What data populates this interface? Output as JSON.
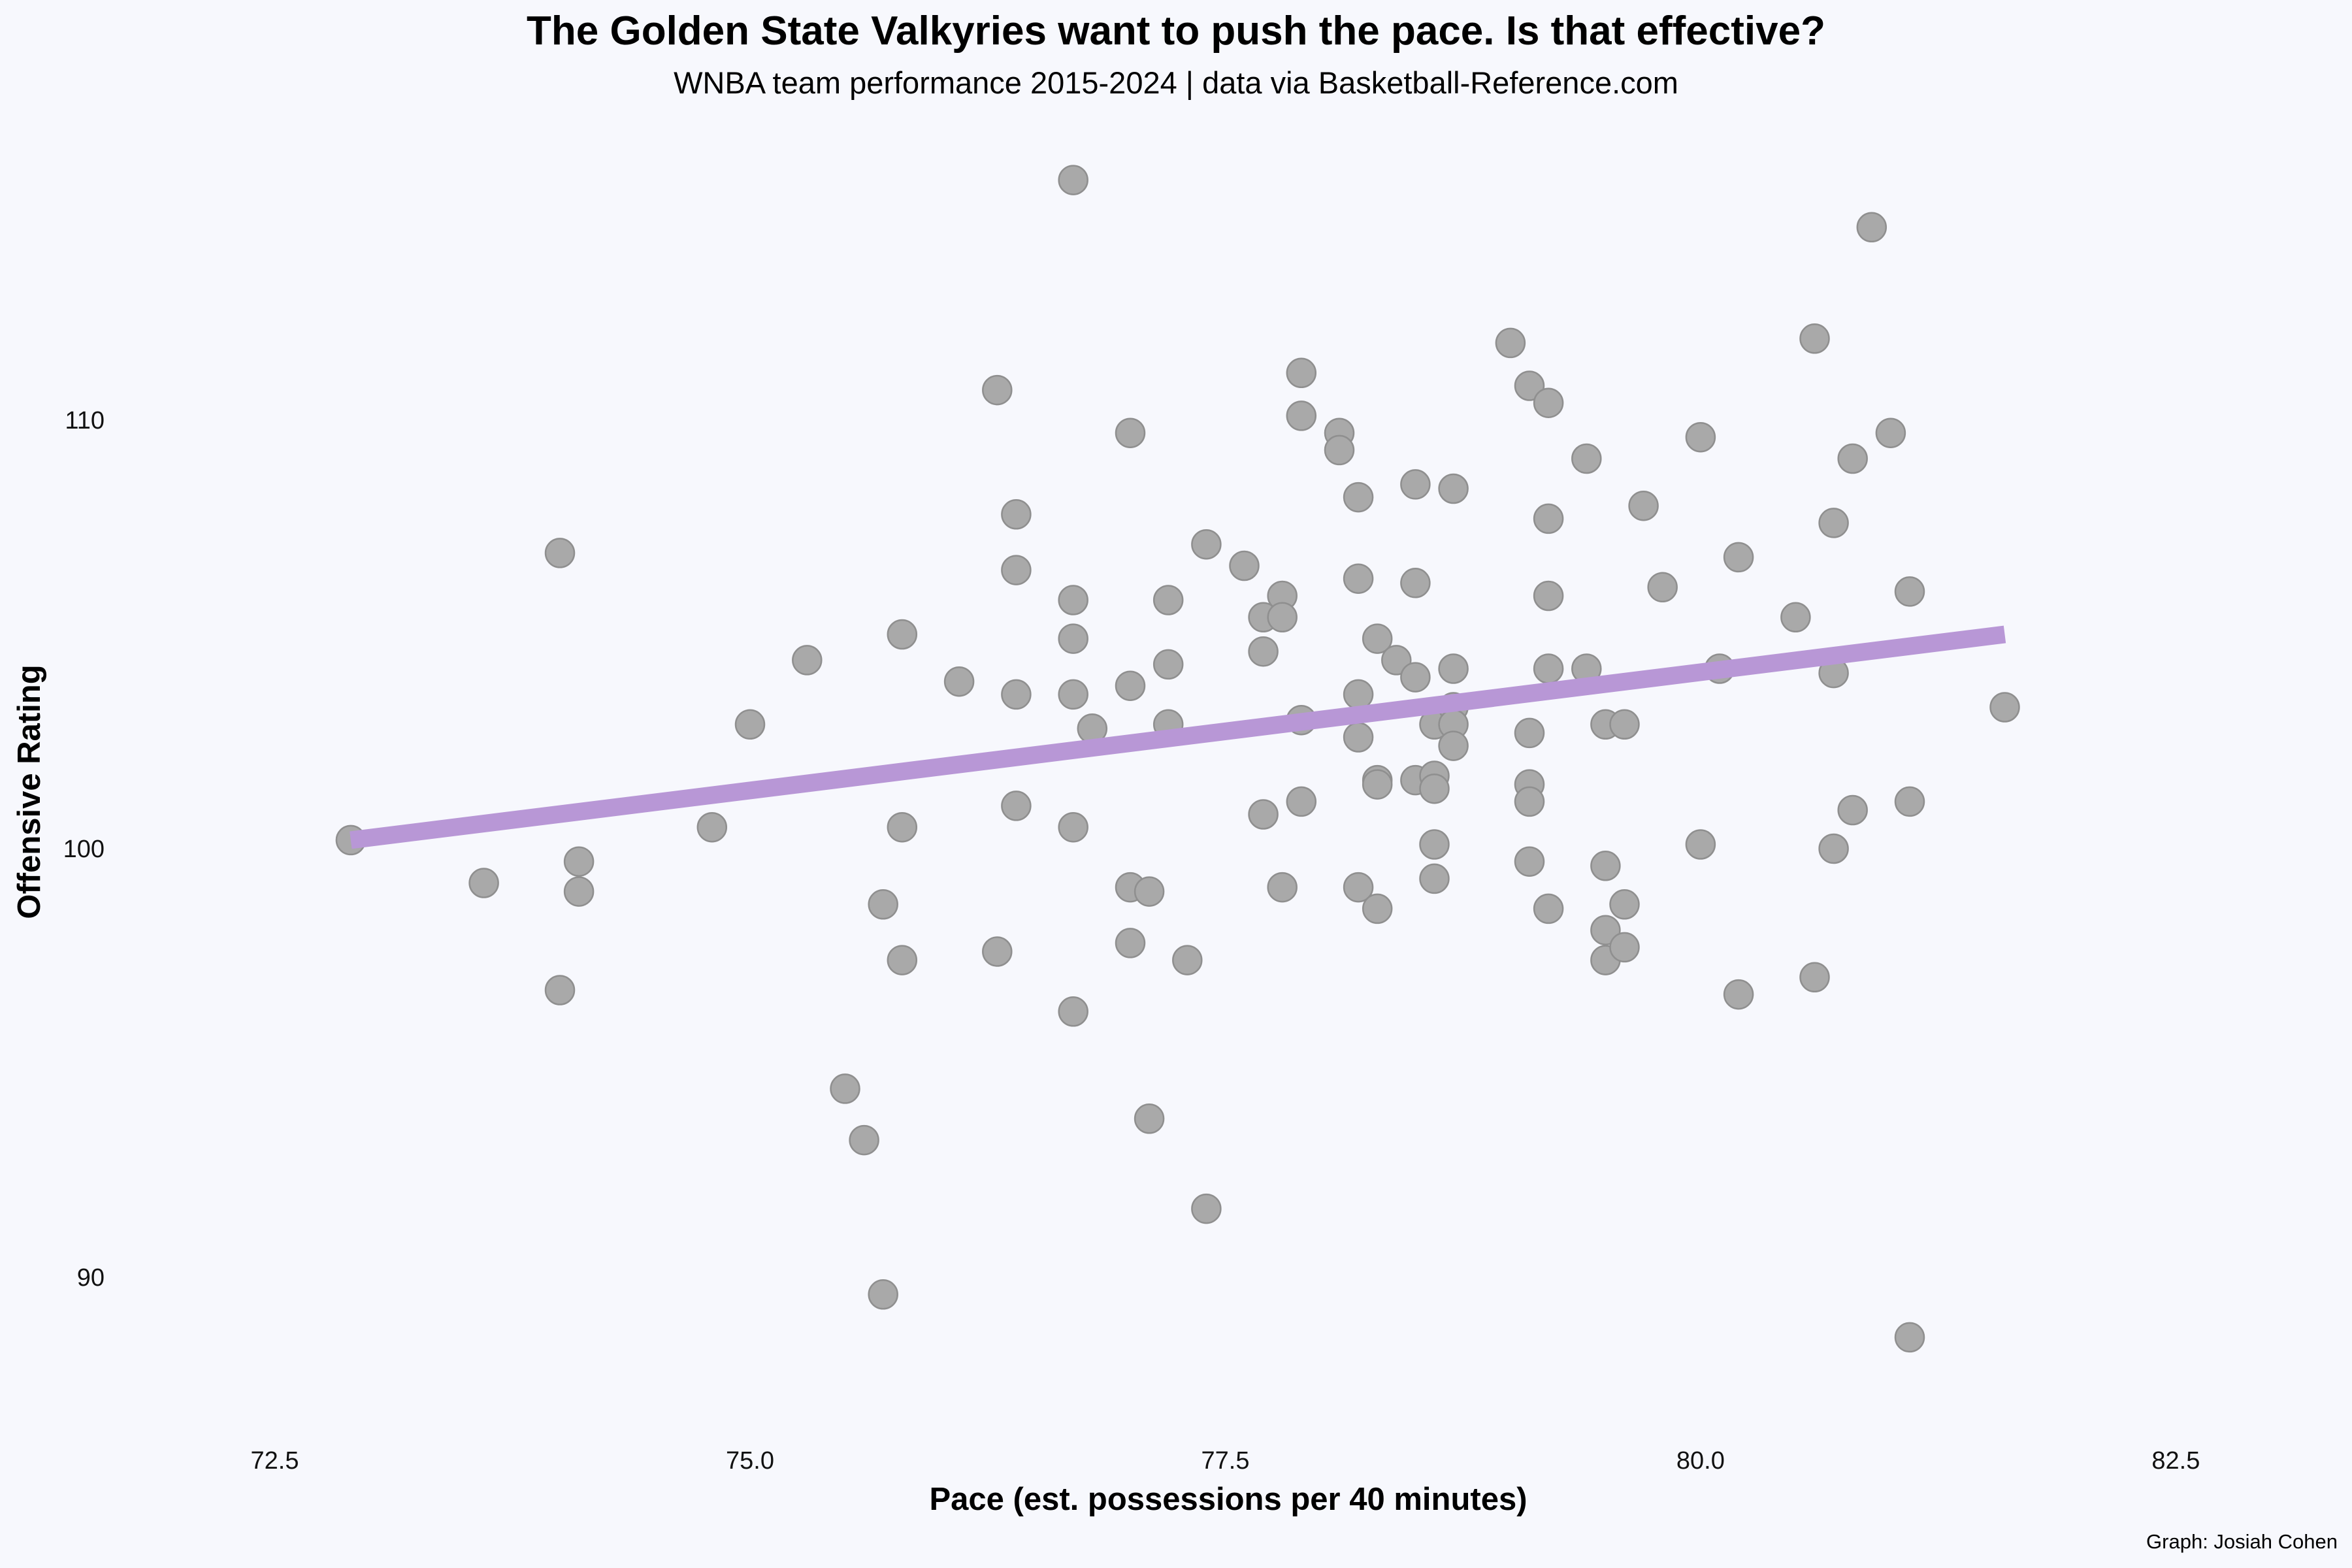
{
  "chart_data": {
    "type": "scatter",
    "title": "The Golden State Valkyries want to push the pace. Is that effective?",
    "subtitle": "WNBA team performance 2015-2024  |  data via Basketball-Reference.com",
    "xlabel": "Pace (est. possessions per 40 minutes)",
    "ylabel": "Offensive Rating",
    "caption": "Graph: Josiah Cohen",
    "xlim": [
      72.0,
      83.1
    ],
    "ylim": [
      86.8,
      116.6
    ],
    "x_ticks": [
      72.5,
      75.0,
      77.5,
      80.0,
      82.5
    ],
    "x_tick_labels": [
      "72.5",
      "75.0",
      "77.5",
      "80.0",
      "82.5"
    ],
    "y_ticks": [
      90,
      100,
      110
    ],
    "y_tick_labels": [
      "90",
      "100",
      "110"
    ],
    "grid": false,
    "point_color": "#a9a9a9",
    "trend_color": "#b897d6",
    "trendline": {
      "x": [
        72.9,
        81.6
      ],
      "y": [
        100.2,
        105.0
      ]
    },
    "points": [
      {
        "x": 72.9,
        "y": 100.2
      },
      {
        "x": 73.6,
        "y": 99.2
      },
      {
        "x": 74.0,
        "y": 106.9
      },
      {
        "x": 74.0,
        "y": 96.7
      },
      {
        "x": 74.1,
        "y": 99.7
      },
      {
        "x": 74.1,
        "y": 99.0
      },
      {
        "x": 74.8,
        "y": 100.5
      },
      {
        "x": 75.0,
        "y": 102.9
      },
      {
        "x": 75.3,
        "y": 104.4
      },
      {
        "x": 75.5,
        "y": 94.4
      },
      {
        "x": 75.6,
        "y": 93.2
      },
      {
        "x": 75.7,
        "y": 98.7
      },
      {
        "x": 75.7,
        "y": 89.6
      },
      {
        "x": 75.8,
        "y": 105.0
      },
      {
        "x": 75.8,
        "y": 100.5
      },
      {
        "x": 75.8,
        "y": 97.4
      },
      {
        "x": 76.1,
        "y": 103.9
      },
      {
        "x": 76.3,
        "y": 110.7
      },
      {
        "x": 76.3,
        "y": 97.6
      },
      {
        "x": 76.4,
        "y": 107.8
      },
      {
        "x": 76.4,
        "y": 106.5
      },
      {
        "x": 76.4,
        "y": 103.6
      },
      {
        "x": 76.4,
        "y": 101.0
      },
      {
        "x": 76.7,
        "y": 115.6
      },
      {
        "x": 76.7,
        "y": 105.8
      },
      {
        "x": 76.7,
        "y": 104.9
      },
      {
        "x": 76.7,
        "y": 103.6
      },
      {
        "x": 76.7,
        "y": 100.5
      },
      {
        "x": 76.7,
        "y": 96.2
      },
      {
        "x": 76.8,
        "y": 102.8
      },
      {
        "x": 77.0,
        "y": 109.7
      },
      {
        "x": 77.0,
        "y": 103.8
      },
      {
        "x": 77.0,
        "y": 99.1
      },
      {
        "x": 77.0,
        "y": 97.8
      },
      {
        "x": 77.1,
        "y": 99.0
      },
      {
        "x": 77.1,
        "y": 93.7
      },
      {
        "x": 77.2,
        "y": 105.8
      },
      {
        "x": 77.2,
        "y": 104.3
      },
      {
        "x": 77.2,
        "y": 102.9
      },
      {
        "x": 77.3,
        "y": 97.4
      },
      {
        "x": 77.4,
        "y": 107.1
      },
      {
        "x": 77.4,
        "y": 91.6
      },
      {
        "x": 77.6,
        "y": 106.6
      },
      {
        "x": 77.7,
        "y": 105.4
      },
      {
        "x": 77.7,
        "y": 104.6
      },
      {
        "x": 77.7,
        "y": 100.8
      },
      {
        "x": 77.8,
        "y": 105.9
      },
      {
        "x": 77.8,
        "y": 105.4
      },
      {
        "x": 77.8,
        "y": 99.1
      },
      {
        "x": 77.9,
        "y": 111.1
      },
      {
        "x": 77.9,
        "y": 110.1
      },
      {
        "x": 77.9,
        "y": 103.0
      },
      {
        "x": 77.9,
        "y": 101.1
      },
      {
        "x": 78.1,
        "y": 109.7
      },
      {
        "x": 78.1,
        "y": 109.3
      },
      {
        "x": 78.2,
        "y": 108.2
      },
      {
        "x": 78.2,
        "y": 106.3
      },
      {
        "x": 78.2,
        "y": 103.6
      },
      {
        "x": 78.2,
        "y": 102.6
      },
      {
        "x": 78.2,
        "y": 99.1
      },
      {
        "x": 78.3,
        "y": 104.9
      },
      {
        "x": 78.3,
        "y": 101.6
      },
      {
        "x": 78.3,
        "y": 101.5
      },
      {
        "x": 78.3,
        "y": 98.6
      },
      {
        "x": 78.4,
        "y": 104.4
      },
      {
        "x": 78.5,
        "y": 108.5
      },
      {
        "x": 78.5,
        "y": 106.2
      },
      {
        "x": 78.5,
        "y": 104.0
      },
      {
        "x": 78.5,
        "y": 101.6
      },
      {
        "x": 78.6,
        "y": 102.9
      },
      {
        "x": 78.6,
        "y": 101.7
      },
      {
        "x": 78.6,
        "y": 101.4
      },
      {
        "x": 78.6,
        "y": 100.1
      },
      {
        "x": 78.6,
        "y": 99.3
      },
      {
        "x": 78.7,
        "y": 108.4
      },
      {
        "x": 78.7,
        "y": 104.2
      },
      {
        "x": 78.7,
        "y": 103.3
      },
      {
        "x": 78.7,
        "y": 102.9
      },
      {
        "x": 78.7,
        "y": 102.4
      },
      {
        "x": 79.0,
        "y": 111.8
      },
      {
        "x": 79.1,
        "y": 110.8
      },
      {
        "x": 79.1,
        "y": 102.7
      },
      {
        "x": 79.1,
        "y": 101.5
      },
      {
        "x": 79.1,
        "y": 101.1
      },
      {
        "x": 79.1,
        "y": 99.7
      },
      {
        "x": 79.2,
        "y": 110.4
      },
      {
        "x": 79.2,
        "y": 107.7
      },
      {
        "x": 79.2,
        "y": 105.9
      },
      {
        "x": 79.2,
        "y": 104.2
      },
      {
        "x": 79.2,
        "y": 98.6
      },
      {
        "x": 79.4,
        "y": 109.1
      },
      {
        "x": 79.4,
        "y": 104.2
      },
      {
        "x": 79.5,
        "y": 102.9
      },
      {
        "x": 79.5,
        "y": 99.6
      },
      {
        "x": 79.5,
        "y": 98.1
      },
      {
        "x": 79.5,
        "y": 97.4
      },
      {
        "x": 79.6,
        "y": 102.9
      },
      {
        "x": 79.6,
        "y": 98.7
      },
      {
        "x": 79.6,
        "y": 97.7
      },
      {
        "x": 79.7,
        "y": 108.0
      },
      {
        "x": 79.8,
        "y": 106.1
      },
      {
        "x": 80.0,
        "y": 109.6
      },
      {
        "x": 80.0,
        "y": 100.1
      },
      {
        "x": 80.1,
        "y": 104.2
      },
      {
        "x": 80.2,
        "y": 106.8
      },
      {
        "x": 80.2,
        "y": 96.6
      },
      {
        "x": 80.5,
        "y": 105.4
      },
      {
        "x": 80.6,
        "y": 111.9
      },
      {
        "x": 80.6,
        "y": 97.0
      },
      {
        "x": 80.7,
        "y": 107.6
      },
      {
        "x": 80.7,
        "y": 104.1
      },
      {
        "x": 80.7,
        "y": 100.0
      },
      {
        "x": 80.8,
        "y": 109.1
      },
      {
        "x": 80.8,
        "y": 100.9
      },
      {
        "x": 80.9,
        "y": 114.5
      },
      {
        "x": 81.0,
        "y": 109.7
      },
      {
        "x": 81.1,
        "y": 106.0
      },
      {
        "x": 81.1,
        "y": 101.1
      },
      {
        "x": 81.1,
        "y": 88.6
      },
      {
        "x": 81.6,
        "y": 103.3
      }
    ]
  }
}
